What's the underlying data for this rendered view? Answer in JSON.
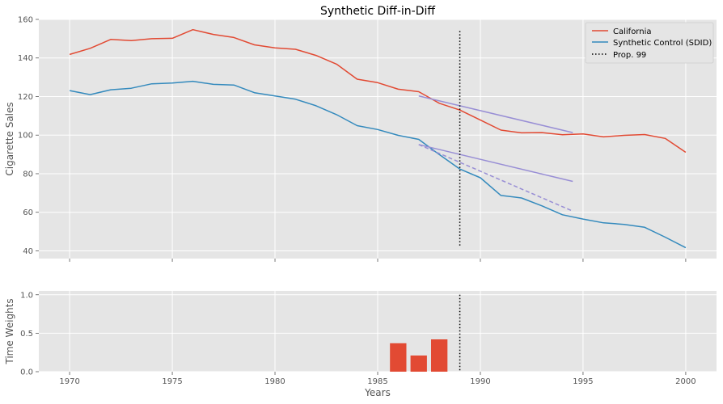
{
  "chart_data": [
    {
      "type": "line",
      "title": "Synthetic Diff-in-Diff",
      "xlabel": "",
      "ylabel": "Cigarette Sales",
      "xlim": [
        1968.5,
        2001.5
      ],
      "ylim": [
        36,
        160
      ],
      "yticks": [
        40,
        60,
        80,
        100,
        120,
        140,
        160
      ],
      "xticks": [
        1970,
        1975,
        1980,
        1985,
        1990,
        1995,
        2000
      ],
      "grid": true,
      "legend_position": "top-right",
      "colors": {
        "california": "#E24A33",
        "synthetic": "#348ABD",
        "trend": "#988ED5",
        "vline": "#000000"
      },
      "series": [
        {
          "name": "California",
          "x": [
            1970,
            1971,
            1972,
            1973,
            1974,
            1975,
            1976,
            1977,
            1978,
            1979,
            1980,
            1981,
            1982,
            1983,
            1984,
            1985,
            1986,
            1987,
            1988,
            1989,
            1990,
            1991,
            1992,
            1993,
            1994,
            1995,
            1996,
            1997,
            1998,
            1999,
            2000
          ],
          "values": [
            141.8,
            145.0,
            149.6,
            149.0,
            150.0,
            150.2,
            154.7,
            152.2,
            150.6,
            146.8,
            145.2,
            144.5,
            141.3,
            136.8,
            129.0,
            127.2,
            123.8,
            122.5,
            116.5,
            113.0,
            107.8,
            102.6,
            101.2,
            101.3,
            100.2,
            100.6,
            99.1,
            99.9,
            100.3,
            98.3,
            91.1
          ]
        },
        {
          "name": "Synthetic Control (SDID)",
          "x": [
            1970,
            1971,
            1972,
            1973,
            1974,
            1975,
            1976,
            1977,
            1978,
            1979,
            1980,
            1981,
            1982,
            1983,
            1984,
            1985,
            1986,
            1987,
            1988,
            1989,
            1990,
            1991,
            1992,
            1993,
            1994,
            1995,
            1996,
            1997,
            1998,
            1999,
            2000
          ],
          "values": [
            123.1,
            121.0,
            123.5,
            124.3,
            126.6,
            127.0,
            127.9,
            126.3,
            126.0,
            122.0,
            120.3,
            118.6,
            115.2,
            110.6,
            104.9,
            102.9,
            99.9,
            97.8,
            89.9,
            82.4,
            77.9,
            68.7,
            67.4,
            63.3,
            58.7,
            56.5,
            54.5,
            53.7,
            52.2,
            47.1,
            41.6
          ]
        }
      ],
      "trend_lines": [
        {
          "x": [
            1987,
            1994.5
          ],
          "values": [
            120.3,
            101.3
          ],
          "style": "solid"
        },
        {
          "x": [
            1987,
            1994.5
          ],
          "values": [
            95.1,
            76.0
          ],
          "style": "solid"
        },
        {
          "x": [
            1987,
            1994.5
          ],
          "values": [
            95.1,
            60.6
          ],
          "style": "dashed"
        }
      ],
      "vline": {
        "name": "Prop. 99",
        "x": 1989,
        "ymin": 42,
        "ymax": 154,
        "style": "dotted"
      }
    },
    {
      "type": "bar",
      "title": "",
      "xlabel": "Years",
      "ylabel": "Time Weights",
      "xlim": [
        1968.5,
        2001.5
      ],
      "ylim": [
        0,
        1.05
      ],
      "yticks": [
        0.0,
        0.5,
        1.0
      ],
      "ytick_labels": [
        "0.0",
        "0.5",
        "1.0"
      ],
      "xticks": [
        1970,
        1975,
        1980,
        1985,
        1990,
        1995,
        2000
      ],
      "grid": true,
      "bar_color": "#E24A33",
      "x": [
        1986,
        1987,
        1988
      ],
      "values": [
        0.37,
        0.21,
        0.42
      ],
      "vline": {
        "x": 1989,
        "ymin": 0,
        "ymax": 1.0,
        "style": "dotted"
      }
    }
  ]
}
